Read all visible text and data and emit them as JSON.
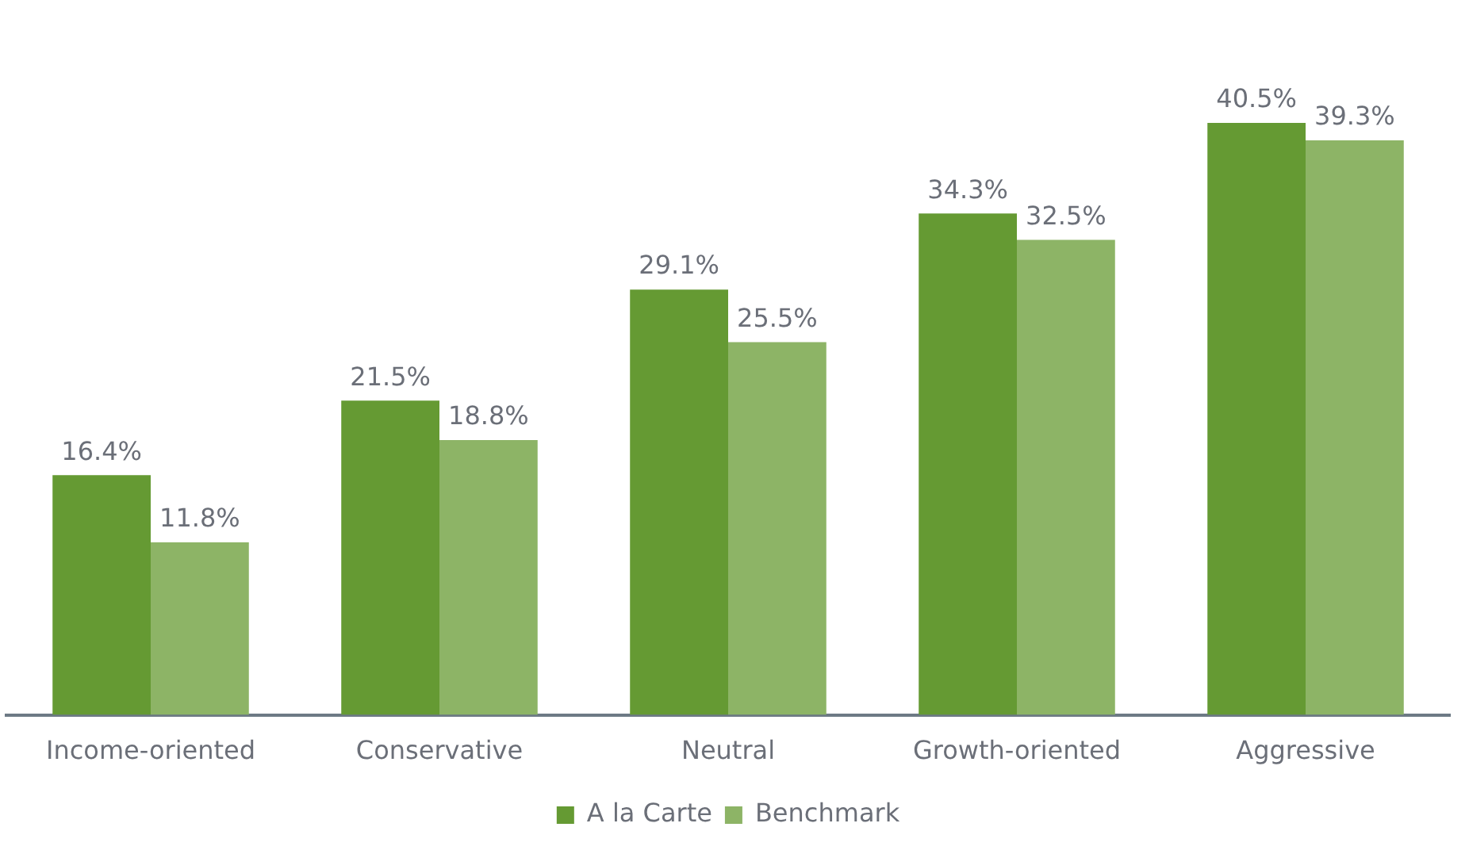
{
  "chart_data": {
    "type": "bar",
    "categories": [
      "Income-oriented",
      "Conservative",
      "Neutral",
      "Growth-oriented",
      "Aggressive"
    ],
    "series": [
      {
        "name": "A la Carte",
        "color": "#659a33",
        "values": [
          16.4,
          21.5,
          29.1,
          34.3,
          40.5
        ],
        "value_labels": [
          "16.4%",
          "21.5%",
          "29.1%",
          "34.3%",
          "40.5%"
        ]
      },
      {
        "name": "Benchmark",
        "color": "#8db466",
        "values": [
          11.8,
          18.8,
          25.5,
          32.5,
          39.3
        ],
        "value_labels": [
          "11.8%",
          "18.8%",
          "25.5%",
          "32.5%",
          "39.3%"
        ]
      }
    ],
    "legend": "bottom",
    "grid": false,
    "tick_labels": "x"
  }
}
